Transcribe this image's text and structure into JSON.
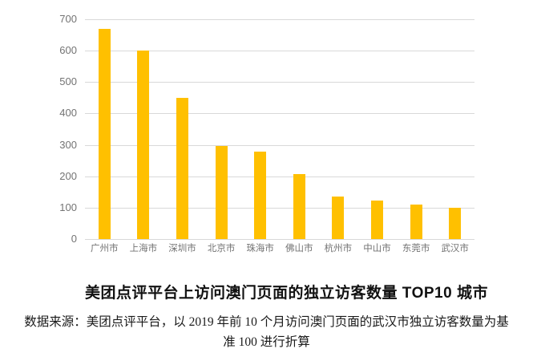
{
  "chart_data": {
    "type": "bar",
    "categories": [
      "广州市",
      "上海市",
      "深圳市",
      "北京市",
      "珠海市",
      "佛山市",
      "杭州市",
      "中山市",
      "东莞市",
      "武汉市"
    ],
    "values": [
      670,
      600,
      450,
      297,
      278,
      206,
      135,
      122,
      110,
      100
    ],
    "title": "美团点评平台上访问澳门页面的独立访客数量 TOP10 城市",
    "xlabel": "",
    "ylabel": "",
    "ylim": [
      0,
      700
    ],
    "yticks": [
      0,
      100,
      200,
      300,
      400,
      500,
      600,
      700
    ],
    "grid": true,
    "legend": false,
    "bar_color": "#FFC000",
    "gridline_color": "#D9D9D9",
    "axis_label_color": "#737373"
  },
  "source_note": {
    "lines": [
      "数据来源：美团点评平台，以 2019 年前 10 个月访问澳门页面的武汉市独立访客数量为基",
      "准 100 进行折算"
    ]
  }
}
